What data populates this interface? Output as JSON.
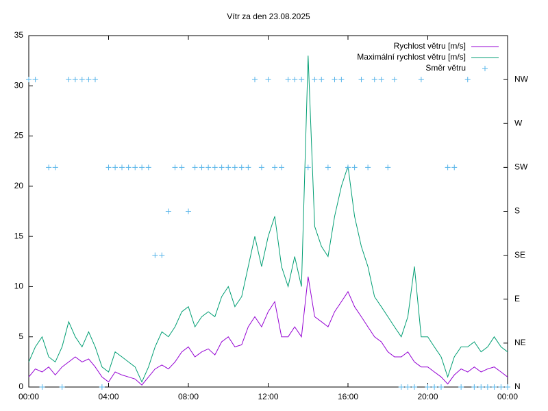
{
  "chart_data": {
    "type": "line",
    "title": "Vítr za den 23.08.2025",
    "x": [
      0,
      0.33,
      0.67,
      1,
      1.33,
      1.67,
      2,
      2.33,
      2.67,
      3,
      3.33,
      3.67,
      4,
      4.33,
      4.67,
      5,
      5.33,
      5.67,
      6,
      6.33,
      6.67,
      7,
      7.33,
      7.67,
      8,
      8.33,
      8.67,
      9,
      9.33,
      9.67,
      10,
      10.33,
      10.67,
      11,
      11.33,
      11.67,
      12,
      12.33,
      12.67,
      13,
      13.33,
      13.67,
      14,
      14.33,
      14.67,
      15,
      15.33,
      15.67,
      16,
      16.33,
      16.67,
      17,
      17.33,
      17.67,
      18,
      18.33,
      18.67,
      19,
      19.33,
      19.67,
      20,
      20.33,
      20.67,
      21,
      21.33,
      21.67,
      22,
      22.33,
      22.67,
      23,
      23.33,
      23.67,
      24
    ],
    "series": [
      {
        "name": "Rychlost větru [m/s]",
        "color": "#9400d3",
        "values": [
          1,
          1.8,
          1.5,
          2,
          1.2,
          2,
          2.5,
          3,
          2.5,
          2.8,
          2,
          1,
          0.5,
          1.5,
          1.2,
          1,
          0.8,
          0.2,
          1,
          1.8,
          2.2,
          1.8,
          2.5,
          3.5,
          4,
          3,
          3.5,
          3.8,
          3.2,
          4.5,
          5,
          4,
          4.2,
          6,
          7,
          6,
          7.5,
          8.5,
          5,
          5,
          6,
          5,
          11,
          7,
          6.5,
          6,
          7.5,
          8.5,
          9.5,
          8,
          7,
          6,
          5,
          4.5,
          3.5,
          3,
          3,
          3.5,
          2.5,
          2,
          2,
          1.5,
          1,
          0.3,
          1.2,
          1.8,
          1.5,
          2,
          1.5,
          1.8,
          2,
          1.5,
          1
        ]
      },
      {
        "name": "Maximální rychlost větru [m/s]",
        "color": "#009e73",
        "values": [
          2.5,
          4,
          5,
          3,
          2.5,
          4,
          6.5,
          5,
          4,
          5.5,
          4,
          2,
          1.5,
          3.5,
          3,
          2.5,
          2,
          0.5,
          2,
          4,
          5.5,
          5,
          6,
          7.5,
          8,
          6,
          7,
          7.5,
          7,
          9,
          10,
          8,
          9,
          12,
          15,
          12,
          15,
          17,
          12,
          10,
          13,
          10,
          33,
          16,
          14,
          13,
          17,
          20,
          22,
          17,
          14,
          12,
          9,
          8,
          7,
          6,
          5,
          7,
          12,
          5,
          5,
          4,
          3,
          1,
          3,
          4,
          4,
          4.5,
          3.5,
          4,
          5,
          4,
          3.5
        ]
      },
      {
        "name": "Směr větru",
        "color": "#56b4e9",
        "axis": "y2",
        "style": "points",
        "values": [
          315,
          315,
          0,
          225,
          225,
          0,
          315,
          315,
          315,
          315,
          315,
          0,
          225,
          225,
          225,
          225,
          225,
          225,
          225,
          135,
          135,
          180,
          225,
          225,
          180,
          225,
          225,
          225,
          225,
          225,
          225,
          225,
          225,
          225,
          315,
          225,
          315,
          225,
          225,
          315,
          315,
          315,
          225,
          315,
          315,
          225,
          315,
          315,
          225,
          225,
          315,
          225,
          315,
          315,
          225,
          315,
          0,
          0,
          0,
          315,
          0,
          0,
          0,
          225,
          225,
          0,
          315,
          0,
          0,
          0,
          0,
          0,
          0
        ]
      }
    ],
    "xlim": [
      0,
      24
    ],
    "xticks": [
      {
        "value": 0,
        "label": "00:00"
      },
      {
        "value": 4,
        "label": "04:00"
      },
      {
        "value": 8,
        "label": "08:00"
      },
      {
        "value": 12,
        "label": "12:00"
      },
      {
        "value": 16,
        "label": "16:00"
      },
      {
        "value": 20,
        "label": "20:00"
      },
      {
        "value": 24,
        "label": "00:00"
      }
    ],
    "ylim": [
      0,
      35
    ],
    "yticks": [
      0,
      5,
      10,
      15,
      20,
      25,
      30,
      35
    ],
    "y2lim": [
      0,
      360
    ],
    "y2ticks": [
      {
        "value": 0,
        "label": "N"
      },
      {
        "value": 45,
        "label": "NE"
      },
      {
        "value": 90,
        "label": "E"
      },
      {
        "value": 135,
        "label": "SE"
      },
      {
        "value": 180,
        "label": "S"
      },
      {
        "value": 225,
        "label": "SW"
      },
      {
        "value": 270,
        "label": "W"
      },
      {
        "value": 315,
        "label": "NW"
      }
    ],
    "legend": "top-right"
  }
}
